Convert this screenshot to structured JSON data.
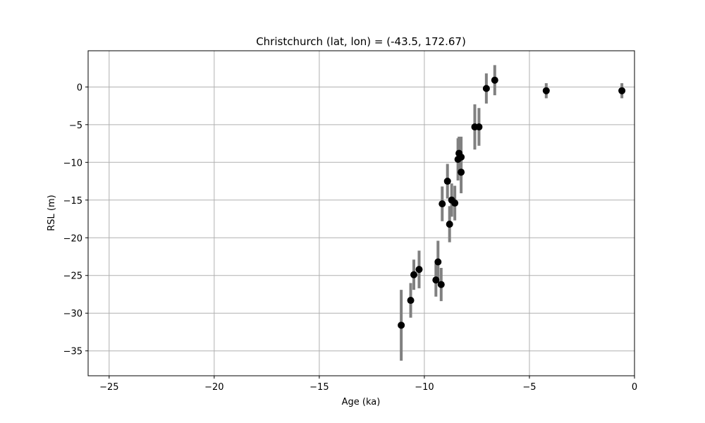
{
  "chart_data": {
    "type": "scatter",
    "title": "Christchurch (lat, lon) = (-43.5, 172.67)",
    "xlabel": "Age (ka)",
    "ylabel": "RSL (m)",
    "xlim": [
      -26,
      0
    ],
    "ylim": [
      -38.3,
      4.8
    ],
    "xticks": [
      -25,
      -20,
      -15,
      -10,
      -5,
      0
    ],
    "yticks": [
      -35,
      -30,
      -25,
      -20,
      -15,
      -10,
      -5,
      0
    ],
    "grid": true,
    "point_color": "#000000",
    "errorbar_color": "#808080",
    "points": [
      {
        "x": -11.1,
        "y": -31.6,
        "err": 4.7
      },
      {
        "x": -10.65,
        "y": -28.3,
        "err": 2.3
      },
      {
        "x": -10.5,
        "y": -24.9,
        "err": 2.0
      },
      {
        "x": -10.25,
        "y": -24.2,
        "err": 2.5
      },
      {
        "x": -9.45,
        "y": -25.6,
        "err": 2.2
      },
      {
        "x": -9.35,
        "y": -23.2,
        "err": 2.8
      },
      {
        "x": -9.2,
        "y": -26.2,
        "err": 2.2
      },
      {
        "x": -9.15,
        "y": -15.5,
        "err": 2.3
      },
      {
        "x": -8.9,
        "y": -12.5,
        "err": 2.3
      },
      {
        "x": -8.8,
        "y": -18.2,
        "err": 2.4
      },
      {
        "x": -8.7,
        "y": -15.0,
        "err": 2.2
      },
      {
        "x": -8.55,
        "y": -15.4,
        "err": 2.3
      },
      {
        "x": -8.4,
        "y": -9.6,
        "err": 2.8
      },
      {
        "x": -8.35,
        "y": -8.8,
        "err": 2.2
      },
      {
        "x": -8.25,
        "y": -9.3,
        "err": 2.7
      },
      {
        "x": -8.25,
        "y": -11.3,
        "err": 2.8
      },
      {
        "x": -7.6,
        "y": -5.3,
        "err": 3.0
      },
      {
        "x": -7.4,
        "y": -5.3,
        "err": 2.5
      },
      {
        "x": -7.05,
        "y": -0.2,
        "err": 2.0
      },
      {
        "x": -6.65,
        "y": 0.9,
        "err": 2.0
      },
      {
        "x": -4.2,
        "y": -0.5,
        "err": 1.0
      },
      {
        "x": -0.6,
        "y": -0.5,
        "err": 1.0
      }
    ]
  }
}
